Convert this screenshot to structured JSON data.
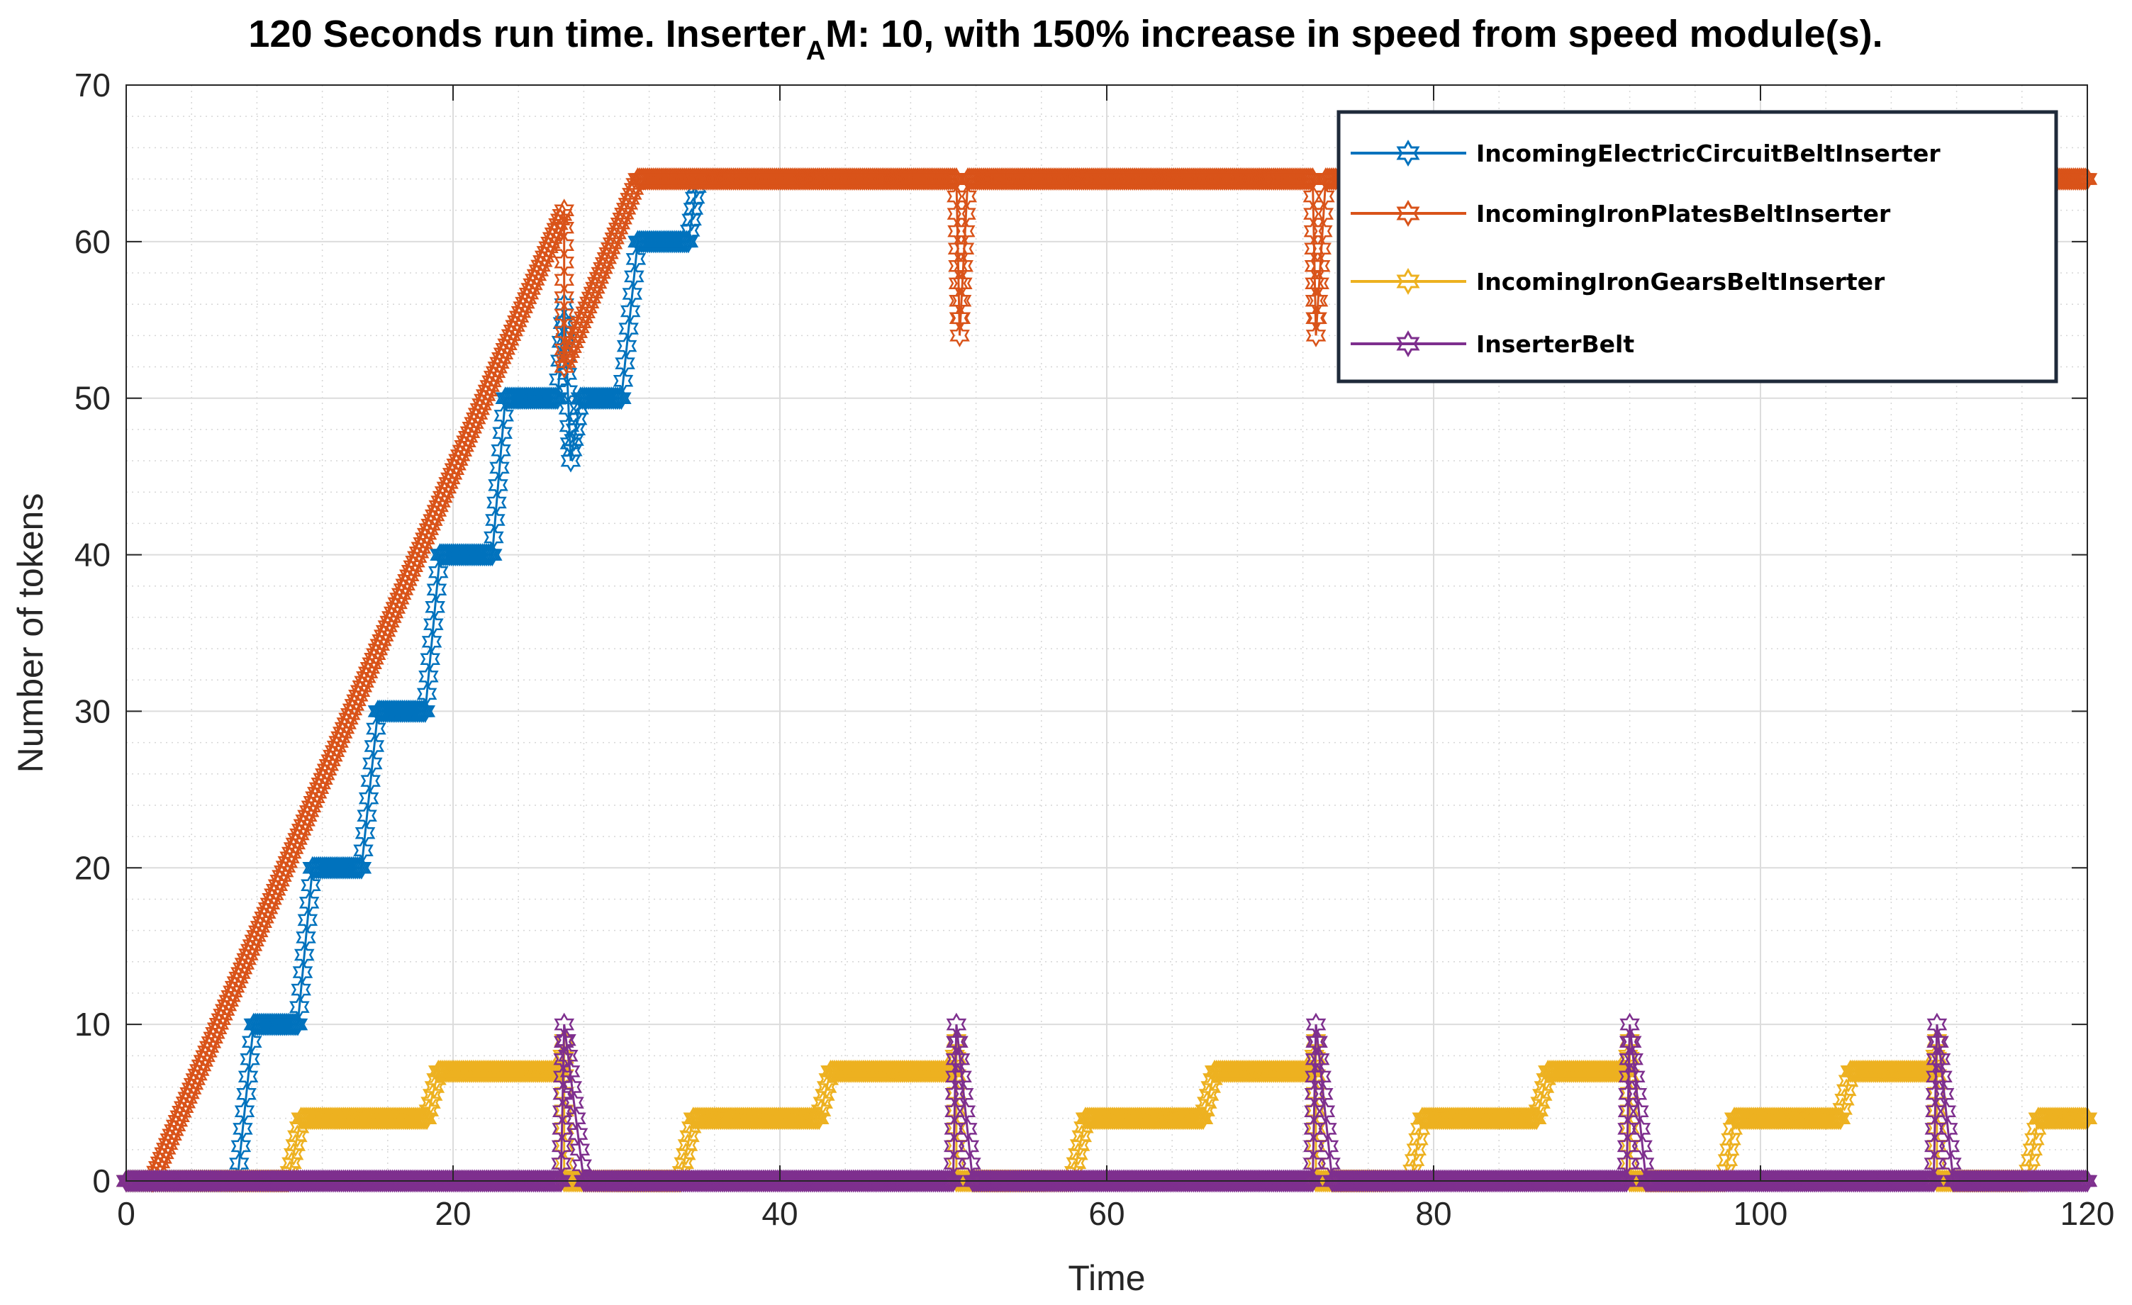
{
  "chart_data": {
    "type": "line",
    "title": {
      "prefix": "120 Seconds run time. Inserter",
      "subscript": "A",
      "suffix": "M: 10, with 150% increase in speed from speed module(s)."
    },
    "xlabel": "Time",
    "ylabel": "Number of tokens",
    "xlim": [
      0,
      120
    ],
    "ylim": [
      0,
      70
    ],
    "xticks": [
      0,
      20,
      40,
      60,
      80,
      100,
      120
    ],
    "yticks": [
      0,
      10,
      20,
      30,
      40,
      50,
      60,
      70
    ],
    "grid": true,
    "minor_grid": true,
    "legend_position": "top-right",
    "marker": "hexagram",
    "series": [
      {
        "name": "IncomingElectricCircuitBeltInserter",
        "color": "#0072BD",
        "points": [
          [
            0,
            0
          ],
          [
            6.8,
            0
          ],
          [
            7.8,
            10
          ],
          [
            10.5,
            10
          ],
          [
            11.4,
            20
          ],
          [
            14.4,
            20
          ],
          [
            15.4,
            30
          ],
          [
            18.3,
            30
          ],
          [
            19.2,
            40
          ],
          [
            22.4,
            40
          ],
          [
            23.2,
            50
          ],
          [
            26.4,
            50
          ],
          [
            26.8,
            56
          ],
          [
            27.2,
            46
          ],
          [
            27.8,
            50
          ],
          [
            30.3,
            50
          ],
          [
            31.3,
            60
          ],
          [
            34.4,
            60
          ],
          [
            34.9,
            63.5
          ]
        ]
      },
      {
        "name": "IncomingIronPlatesBeltInserter",
        "color": "#D95319",
        "points": [
          [
            1.6,
            0
          ],
          [
            26.8,
            62
          ],
          [
            26.8,
            52
          ],
          [
            31.3,
            64
          ],
          [
            50.8,
            64
          ],
          [
            51,
            54
          ],
          [
            51.5,
            64
          ],
          [
            72.6,
            64
          ],
          [
            72.8,
            54
          ],
          [
            73.4,
            64
          ],
          [
            120,
            64
          ]
        ]
      },
      {
        "name": "IncomingIronGearsBeltInserter",
        "color": "#EDB120",
        "points": [
          [
            0,
            0
          ],
          [
            9.9,
            0
          ],
          [
            10.7,
            4
          ],
          [
            18.4,
            4
          ],
          [
            19.1,
            7
          ],
          [
            26.6,
            7
          ],
          [
            26.8,
            9
          ],
          [
            26.8,
            0
          ],
          [
            33.9,
            0
          ],
          [
            34.7,
            4
          ],
          [
            42.4,
            4
          ],
          [
            43.1,
            7
          ],
          [
            50.6,
            7
          ],
          [
            50.8,
            9
          ],
          [
            50.8,
            0
          ],
          [
            57.9,
            0
          ],
          [
            58.7,
            4
          ],
          [
            65.9,
            4
          ],
          [
            66.6,
            7
          ],
          [
            72.6,
            7
          ],
          [
            72.8,
            9
          ],
          [
            72.8,
            0
          ],
          [
            78.6,
            0
          ],
          [
            79.3,
            4
          ],
          [
            86.3,
            4
          ],
          [
            87,
            7
          ],
          [
            91.8,
            7
          ],
          [
            92,
            9
          ],
          [
            92,
            0
          ],
          [
            97.8,
            0
          ],
          [
            98.4,
            4
          ],
          [
            104.9,
            4
          ],
          [
            105.5,
            7
          ],
          [
            110.6,
            7
          ],
          [
            110.8,
            9
          ],
          [
            110.8,
            0
          ],
          [
            116.3,
            0
          ],
          [
            117,
            4
          ],
          [
            120,
            4
          ]
        ]
      },
      {
        "name": "InserterBelt",
        "color": "#7E2F8E",
        "points": [
          [
            0,
            0
          ],
          [
            26.6,
            0
          ],
          [
            26.8,
            10
          ],
          [
            28,
            0
          ],
          [
            50.6,
            0
          ],
          [
            50.8,
            10
          ],
          [
            51.8,
            0
          ],
          [
            72.6,
            0
          ],
          [
            72.8,
            10
          ],
          [
            73.8,
            0
          ],
          [
            91.8,
            0
          ],
          [
            92,
            10
          ],
          [
            93,
            0
          ],
          [
            110.6,
            0
          ],
          [
            110.8,
            10
          ],
          [
            111.8,
            0
          ],
          [
            120,
            0
          ]
        ]
      }
    ]
  }
}
